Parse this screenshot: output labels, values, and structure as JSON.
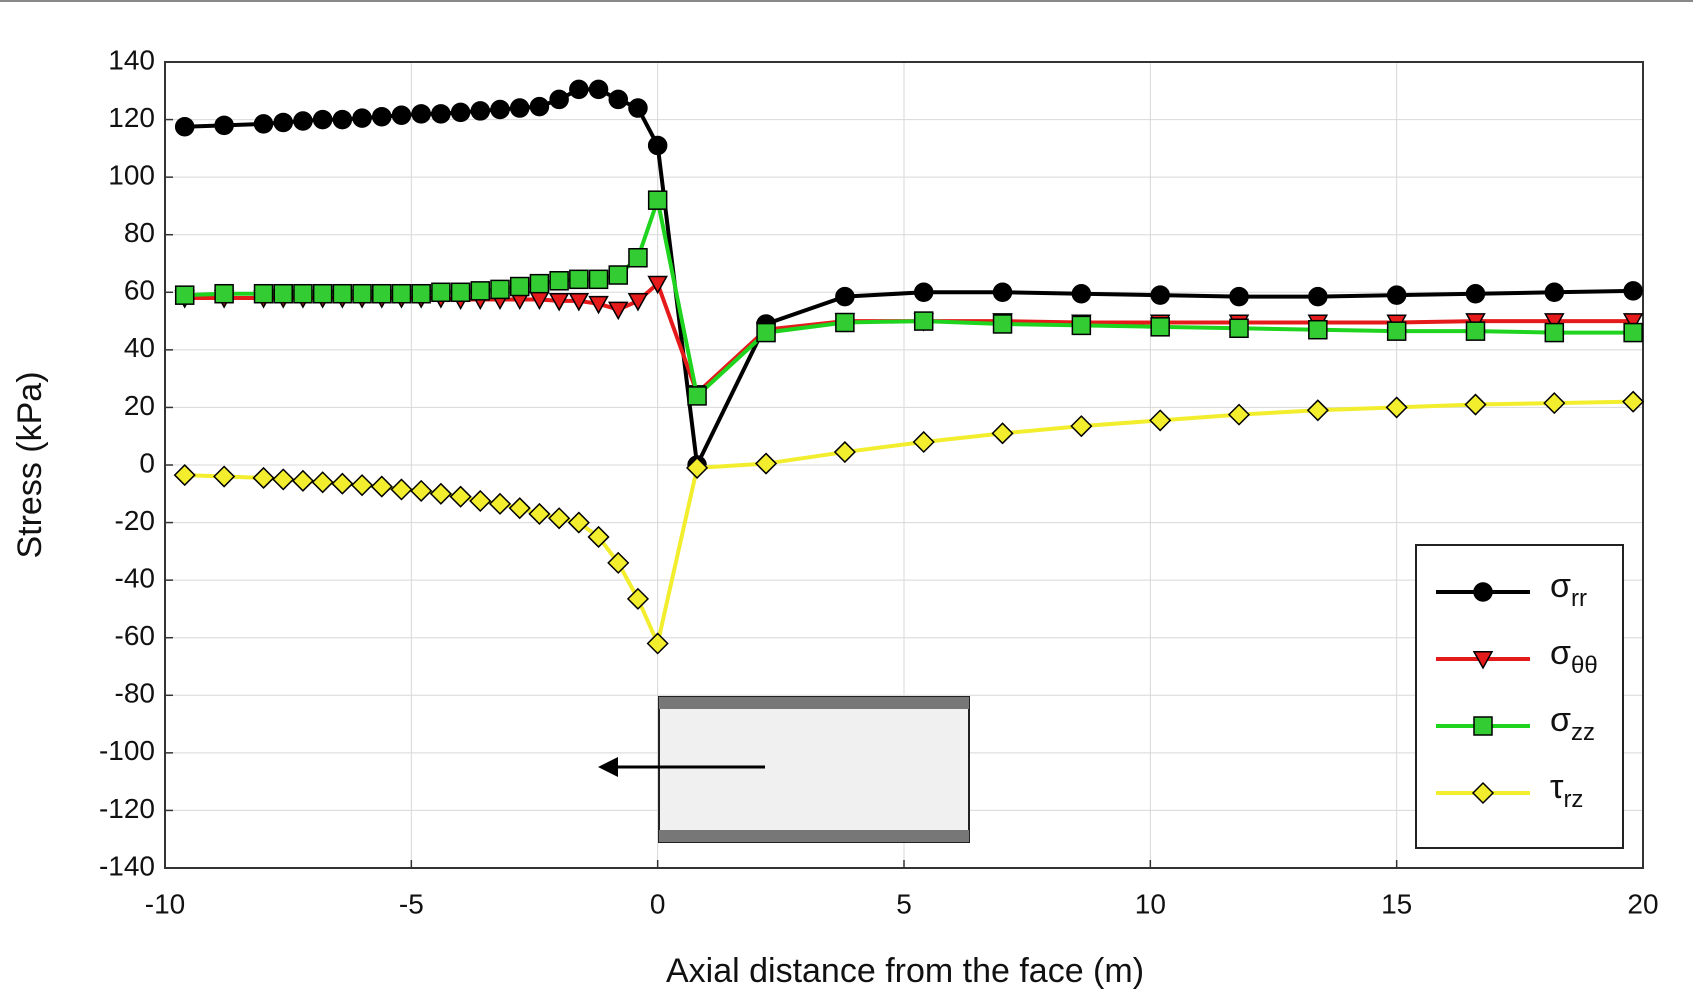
{
  "chart_data": {
    "type": "line",
    "x_label": "Axial distance from the face (m)",
    "y_label": "Stress (kPa)",
    "xlim": [
      -10,
      20
    ],
    "xticks": [
      -10,
      -5,
      0,
      5,
      10,
      15,
      20
    ],
    "ylim": [
      -140,
      140
    ],
    "yticks": [
      -140,
      -120,
      -100,
      -80,
      -60,
      -40,
      -20,
      0,
      20,
      40,
      60,
      80,
      100,
      120,
      140
    ],
    "grid": true,
    "legend": "lower right",
    "x": [
      -9.6,
      -8.8,
      -8.0,
      -7.6,
      -7.2,
      -6.8,
      -6.4,
      -6.0,
      -5.6,
      -5.2,
      -4.8,
      -4.4,
      -4.0,
      -3.6,
      -3.2,
      -2.8,
      -2.4,
      -2.0,
      -1.6,
      -1.2,
      -0.8,
      -0.4,
      0,
      0.8,
      2.2,
      3.8,
      5.4,
      7.0,
      8.6,
      10.2,
      11.8,
      13.4,
      15.0,
      16.6,
      18.2,
      19.8
    ],
    "series": [
      {
        "name": "σrr",
        "color": "#000000",
        "marker": "circle",
        "marker_color": "#000000",
        "values": [
          117.5,
          118,
          118.5,
          119,
          119.5,
          120,
          120,
          120.5,
          121,
          121.5,
          122,
          122,
          122.5,
          123,
          123.5,
          124,
          124.5,
          127,
          130.5,
          130.5,
          127,
          124,
          111,
          0,
          49,
          58.5,
          60,
          60,
          59.5,
          59,
          58.5,
          58.5,
          59,
          59.5,
          60,
          60.5
        ]
      },
      {
        "name": "σθθ",
        "color": "#e51b1b",
        "marker": "triangle-down",
        "marker_color": "#e51b1b",
        "values": [
          58,
          58,
          58,
          58,
          58,
          58,
          58,
          58,
          58,
          58,
          58,
          58,
          57.5,
          57.5,
          57.5,
          57.5,
          57.5,
          57,
          57,
          56,
          54,
          57,
          63,
          25,
          47,
          50,
          50,
          50,
          49.5,
          49.5,
          49.5,
          49.5,
          49.5,
          50,
          50,
          50
        ]
      },
      {
        "name": "σzz",
        "color": "#1ed41e",
        "marker": "square",
        "marker_color": "#33cc33",
        "values": [
          59,
          59.5,
          59.5,
          59.5,
          59.5,
          59.5,
          59.5,
          59.5,
          59.5,
          59.5,
          59.5,
          60,
          60,
          60.5,
          61,
          62,
          63,
          64,
          64.5,
          64.5,
          66,
          72,
          92,
          24,
          46,
          49.5,
          50,
          49,
          48.5,
          48,
          47.5,
          47,
          46.5,
          46.5,
          46,
          46
        ]
      },
      {
        "name": "τrz",
        "color": "#f2ee2e",
        "marker": "diamond",
        "marker_color": "#f2ee2e",
        "values": [
          -3.5,
          -4,
          -4.5,
          -5,
          -5.5,
          -6,
          -6.5,
          -7,
          -7.5,
          -8.5,
          -9,
          -10,
          -11,
          -12.5,
          -13.5,
          -15,
          -17,
          -18.5,
          -20,
          -25,
          -34,
          -46.5,
          -62,
          -1,
          0.5,
          4.5,
          8,
          11,
          13.5,
          15.5,
          17.5,
          19,
          20,
          21,
          21.5,
          22
        ]
      }
    ]
  }
}
